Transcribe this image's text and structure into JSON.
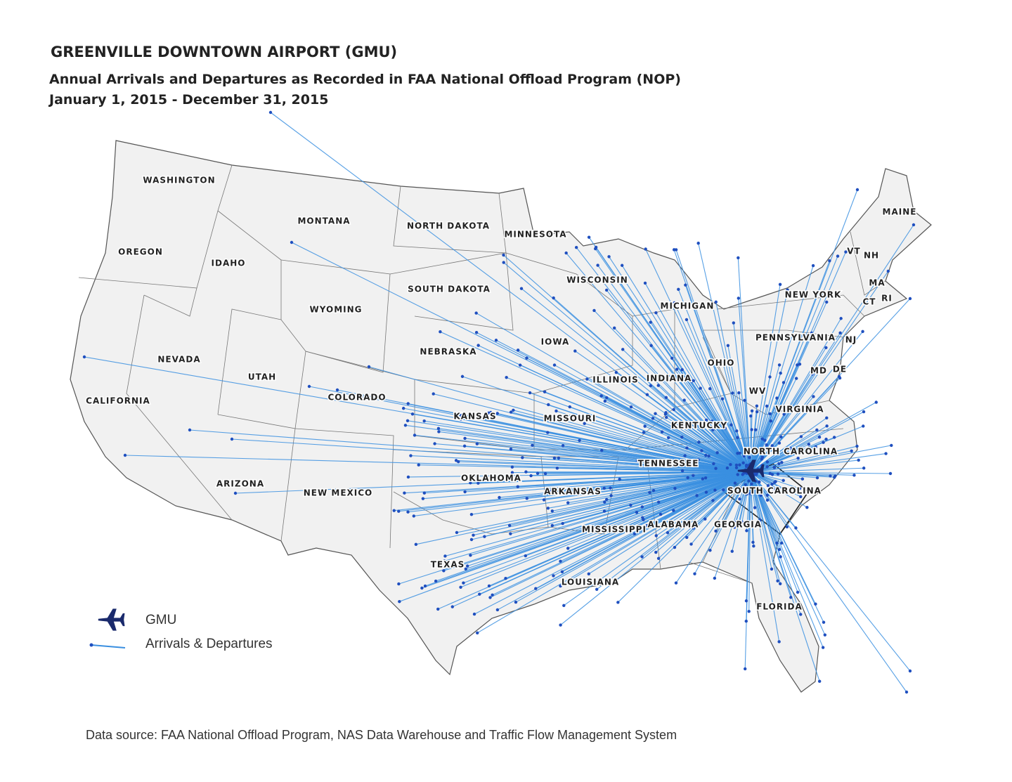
{
  "header": {
    "title": "GREENVILLE DOWNTOWN AIRPORT (GMU)",
    "subtitle": "Annual Arrivals and Departures as Recorded in FAA National Offload Program (NOP)",
    "date_range": "January 1, 2015 - December 31, 2015"
  },
  "map": {
    "state_labels": [
      "WASHINGTON",
      "OREGON",
      "IDAHO",
      "MONTANA",
      "NORTH DAKOTA",
      "MINNESOTA",
      "WISCONSIN",
      "MICHIGAN",
      "NEW YORK",
      "MAINE",
      "VT",
      "NH",
      "MA",
      "CT",
      "RI",
      "NEVADA",
      "UTAH",
      "WYOMING",
      "SOUTH DAKOTA",
      "NEBRASKA",
      "IOWA",
      "ILLINOIS",
      "INDIANA",
      "OHIO",
      "PENNSYLVANIA",
      "NJ",
      "MD",
      "DE",
      "WV",
      "VIRGINIA",
      "KENTUCKY",
      "CALIFORNIA",
      "COLORADO",
      "KANSAS",
      "MISSOURI",
      "NORTH CAROLINA",
      "TENNESSEE",
      "SOUTH CAROLINA",
      "OKLAHOMA",
      "ARKANSAS",
      "ARIZONA",
      "NEW MEXICO",
      "MISSISSIPPI",
      "ALABAMA",
      "GEORGIA",
      "TEXAS",
      "LOUISIANA",
      "FLORIDA"
    ]
  },
  "legend": {
    "items": [
      {
        "label": "GMU"
      },
      {
        "label": "Arrivals & Departures"
      }
    ]
  },
  "footer": {
    "source": "Data source: FAA National Offload Program, NAS Data Warehouse and Traffic Flow Management System"
  }
}
